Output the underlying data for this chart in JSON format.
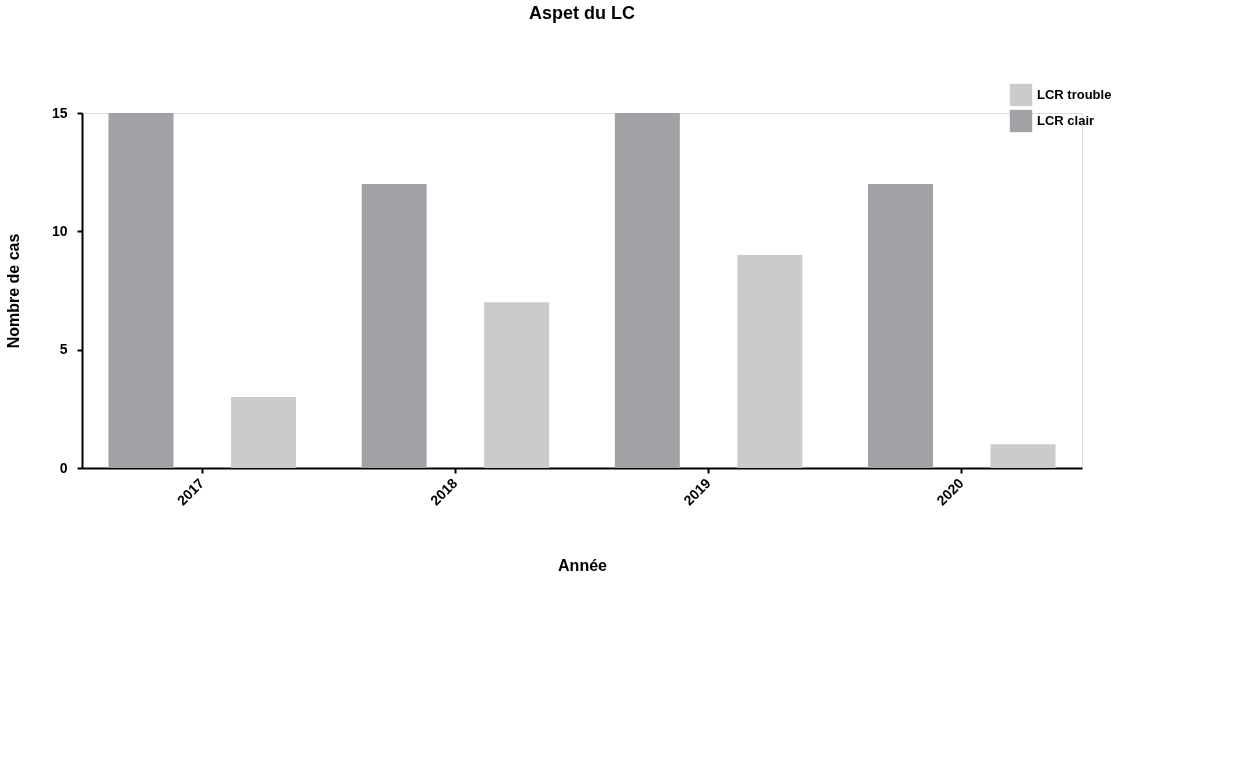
{
  "chart_data": {
    "type": "bar",
    "title": "Aspet du LC",
    "xlabel": "Année",
    "ylabel": "Nombre de cas",
    "categories": [
      "2017",
      "2018",
      "2019",
      "2020"
    ],
    "series": [
      {
        "name": "LCR clair",
        "color": "#a2a1a6",
        "values": [
          15,
          12,
          15,
          12
        ]
      },
      {
        "name": "LCR trouble",
        "color": "#cbcbcb",
        "values": [
          3,
          7,
          9,
          1
        ]
      }
    ],
    "ylim": [
      0,
      15
    ],
    "yticks": [
      0,
      5,
      10,
      15
    ],
    "grid": false,
    "legend": "top right"
  }
}
